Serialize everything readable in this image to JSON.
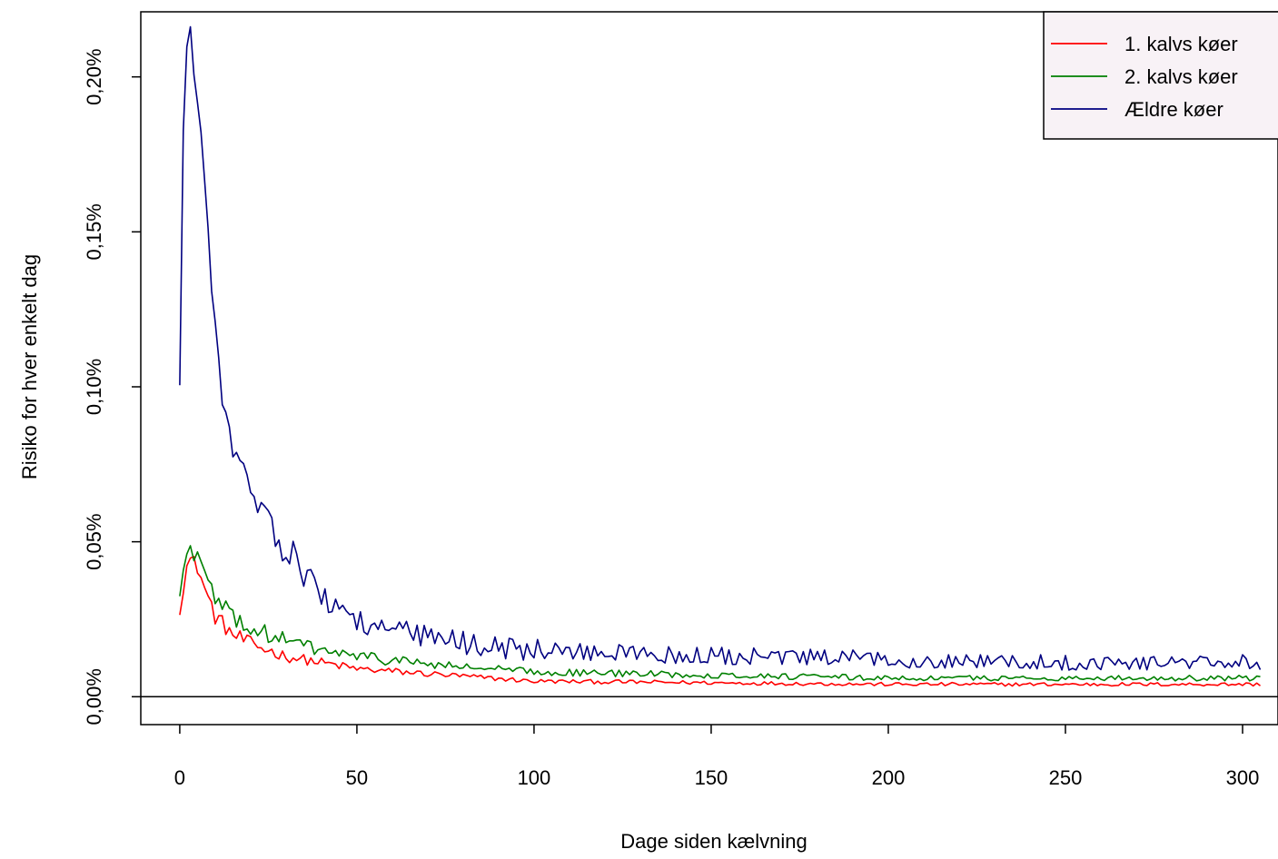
{
  "chart_data": {
    "type": "line",
    "title": "",
    "xlabel": "Dage siden kælvning",
    "ylabel": "Risiko for hver enkelt dag",
    "xlim": [
      -11,
      310
    ],
    "ylim": [
      -0.009,
      0.221
    ],
    "x_ticks": [
      0,
      50,
      100,
      150,
      200,
      250,
      300
    ],
    "x_tick_labels": [
      "0",
      "50",
      "100",
      "150",
      "200",
      "250",
      "300"
    ],
    "y_ticks": [
      0,
      0.05,
      0.1,
      0.15,
      0.2
    ],
    "y_tick_labels": [
      "0,00%",
      "0,05%",
      "0,10%",
      "0,15%",
      "0,20%"
    ],
    "hline_y": 0,
    "grid": false,
    "legend_position": "top-right",
    "series_style": "daily noisy line (approximate values read from plot)",
    "series": [
      {
        "name": "1. kalvs køer",
        "color": "#ff0000",
        "anchors": [
          [
            0,
            0.029
          ],
          [
            1,
            0.036
          ],
          [
            2,
            0.042
          ],
          [
            3,
            0.044
          ],
          [
            5,
            0.042
          ],
          [
            7,
            0.035
          ],
          [
            10,
            0.026
          ],
          [
            15,
            0.02
          ],
          [
            20,
            0.017
          ],
          [
            30,
            0.013
          ],
          [
            40,
            0.011
          ],
          [
            50,
            0.009
          ],
          [
            75,
            0.007
          ],
          [
            100,
            0.005
          ],
          [
            150,
            0.0045
          ],
          [
            200,
            0.004
          ],
          [
            250,
            0.004
          ],
          [
            300,
            0.004
          ],
          [
            305,
            0.004
          ]
        ],
        "noise": 0.0017
      },
      {
        "name": "2. kalvs køer",
        "color": "#008000",
        "anchors": [
          [
            0,
            0.033
          ],
          [
            1,
            0.04
          ],
          [
            2,
            0.046
          ],
          [
            3,
            0.047
          ],
          [
            5,
            0.046
          ],
          [
            7,
            0.04
          ],
          [
            10,
            0.031
          ],
          [
            15,
            0.026
          ],
          [
            20,
            0.022
          ],
          [
            30,
            0.018
          ],
          [
            40,
            0.015
          ],
          [
            50,
            0.013
          ],
          [
            75,
            0.01
          ],
          [
            100,
            0.008
          ],
          [
            150,
            0.007
          ],
          [
            200,
            0.006
          ],
          [
            250,
            0.006
          ],
          [
            300,
            0.006
          ],
          [
            305,
            0.006
          ]
        ],
        "noise": 0.0018
      },
      {
        "name": "Ældre køer",
        "color": "#000080",
        "anchors": [
          [
            0,
            0.098
          ],
          [
            1,
            0.185
          ],
          [
            2,
            0.21
          ],
          [
            3,
            0.212
          ],
          [
            5,
            0.195
          ],
          [
            7,
            0.165
          ],
          [
            10,
            0.12
          ],
          [
            12,
            0.092
          ],
          [
            15,
            0.08
          ],
          [
            20,
            0.067
          ],
          [
            25,
            0.058
          ],
          [
            30,
            0.045
          ],
          [
            33,
            0.049
          ],
          [
            35,
            0.04
          ],
          [
            40,
            0.032
          ],
          [
            45,
            0.029
          ],
          [
            50,
            0.025
          ],
          [
            60,
            0.021
          ],
          [
            75,
            0.018
          ],
          [
            100,
            0.015
          ],
          [
            150,
            0.013
          ],
          [
            200,
            0.012
          ],
          [
            250,
            0.011
          ],
          [
            300,
            0.011
          ],
          [
            305,
            0.009
          ]
        ],
        "noise": 0.0028
      }
    ]
  }
}
